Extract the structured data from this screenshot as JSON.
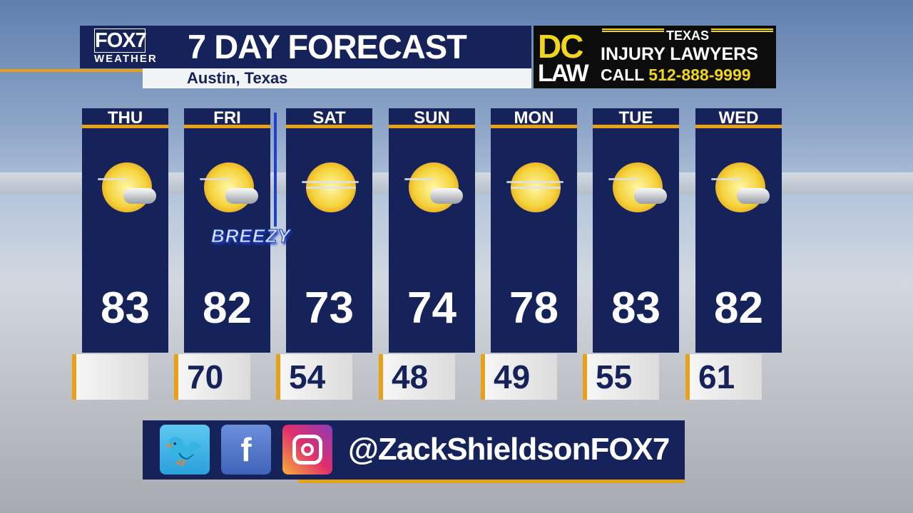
{
  "header": {
    "logo_top": "FOX7",
    "logo_bottom": "WEATHER",
    "title": "7 DAY FORECAST",
    "location": "Austin, Texas"
  },
  "ad": {
    "brand_top": "DC",
    "brand_bottom": "LAW",
    "line1": "TEXAS",
    "line2": "INJURY LAWYERS",
    "call_label": "CALL",
    "phone": "512-888-9999"
  },
  "days": [
    {
      "day": "THU",
      "high": "83",
      "low": "",
      "icon": "partly-sunny-icon"
    },
    {
      "day": "FRI",
      "high": "82",
      "low": "70",
      "icon": "partly-sunny-icon"
    },
    {
      "day": "SAT",
      "high": "73",
      "low": "54",
      "icon": "hazy-sun-icon"
    },
    {
      "day": "SUN",
      "high": "74",
      "low": "48",
      "icon": "partly-sunny-icon"
    },
    {
      "day": "MON",
      "high": "78",
      "low": "49",
      "icon": "hazy-sun-icon"
    },
    {
      "day": "TUE",
      "high": "83",
      "low": "55",
      "icon": "partly-sunny-icon"
    },
    {
      "day": "WED",
      "high": "82",
      "low": "61",
      "icon": "partly-sunny-icon"
    }
  ],
  "annotation": {
    "label": "BREEZY",
    "icon": "cold-front-icon"
  },
  "social": {
    "handle": "@ZackShieldsonFOX7",
    "twitter": "twitter-icon",
    "facebook": "facebook-icon",
    "facebook_glyph": "f",
    "instagram": "instagram-icon"
  },
  "colors": {
    "navy": "#16225a",
    "accent": "#e8a117",
    "ad_yellow": "#f0d51c"
  }
}
